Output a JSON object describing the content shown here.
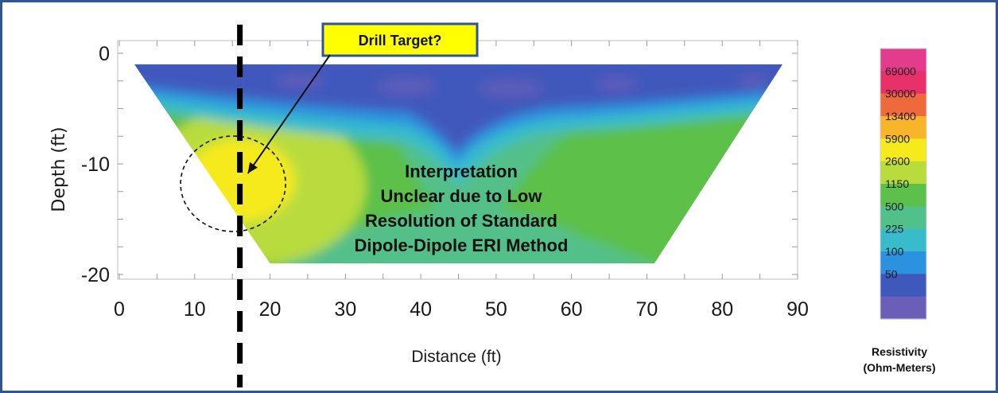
{
  "chart_data": {
    "type": "heatmap",
    "xlabel": "Distance (ft)",
    "ylabel": "Depth (ft)",
    "x_ticks": [
      0,
      10,
      20,
      30,
      40,
      50,
      60,
      70,
      80,
      90
    ],
    "y_ticks": [
      0,
      -10,
      -20
    ],
    "xlim": [
      0,
      90
    ],
    "ylim": [
      -20,
      0
    ],
    "section_outline": {
      "top_depth": -1,
      "bottom_depth": -19,
      "top_x": [
        2,
        88
      ],
      "bottom_x": [
        20,
        71
      ]
    },
    "resistivity_scale": {
      "title_line1": "Resistivity",
      "title_line2": "(Ohm-Meters)",
      "levels": [
        "69000",
        "30000",
        "13400",
        "5900",
        "2600",
        "1150",
        "500",
        "225",
        "100",
        "50"
      ],
      "colors": [
        "#e43c8c",
        "#e8306a",
        "#ef6a3a",
        "#f8b52a",
        "#f5ea1c",
        "#b8dc3c",
        "#5cc04a",
        "#52c08a",
        "#38bccc",
        "#2a92e0",
        "#3f58bc",
        "#6a5eb8"
      ]
    },
    "annotations": {
      "callout": "Drill Target?",
      "interpretation": [
        "Interpretation",
        "Unclear due to Low",
        "Resolution of Standard",
        "Dipole-Dipole ERI Method"
      ],
      "target_x": 16,
      "target_depth": -11,
      "marker_line_x": 16
    }
  }
}
